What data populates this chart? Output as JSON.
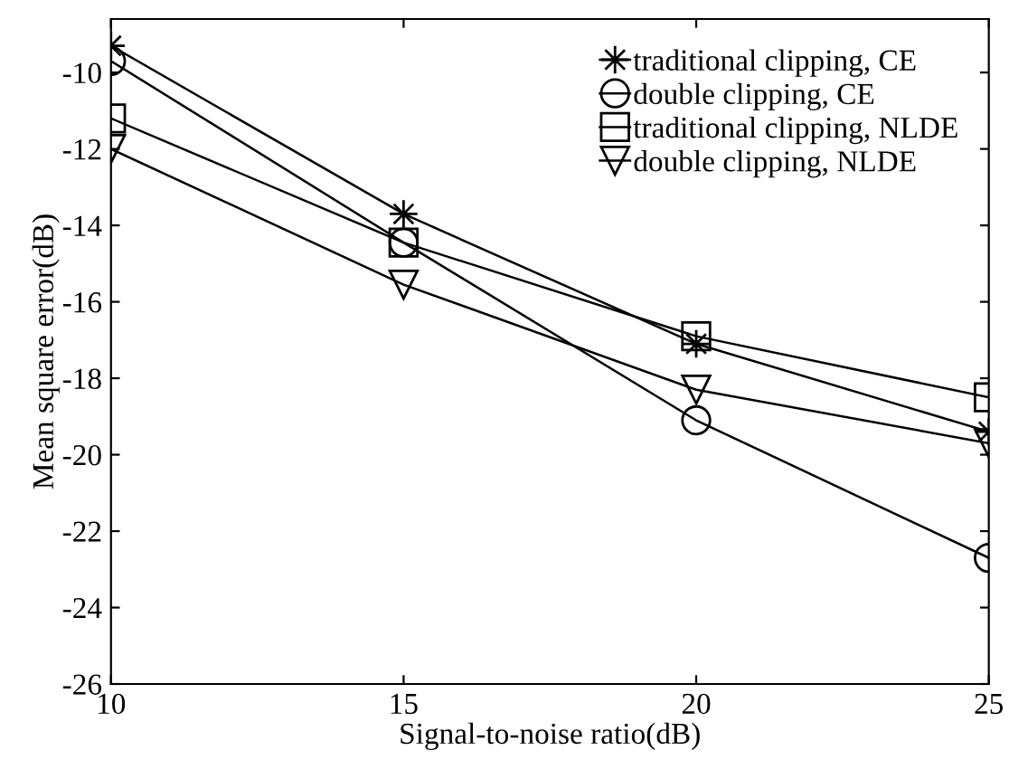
{
  "chart_data": {
    "type": "line",
    "xlabel": "Signal-to-noise ratio(dB)",
    "ylabel": "Mean square error(dB)",
    "x": [
      10,
      15,
      20,
      25
    ],
    "series": [
      {
        "name": "traditional clipping, CE",
        "color": "#000000",
        "marker": "star",
        "values": [
          -9.3,
          -13.7,
          -17.1,
          -19.4
        ]
      },
      {
        "name": "double clipping, CE",
        "color": "#000000",
        "marker": "circle",
        "values": [
          -9.7,
          -14.45,
          -19.1,
          -22.7
        ]
      },
      {
        "name": "traditional clipping, NLDE",
        "color": "#000000",
        "marker": "square",
        "values": [
          -11.2,
          -14.45,
          -16.9,
          -18.5
        ]
      },
      {
        "name": "double clipping, NLDE",
        "color": "#000000",
        "marker": "triangle",
        "values": [
          -12.0,
          -15.55,
          -18.3,
          -19.7
        ]
      }
    ],
    "xlim": [
      10,
      25
    ],
    "xticks": [
      10,
      15,
      20,
      25
    ],
    "ylim": [
      -26,
      -8.6
    ],
    "yticks": [
      -26,
      -24,
      -22,
      -20,
      -18,
      -16,
      -14,
      -12,
      -10
    ],
    "grid": false,
    "legend": "top right",
    "line_style": "solid"
  }
}
